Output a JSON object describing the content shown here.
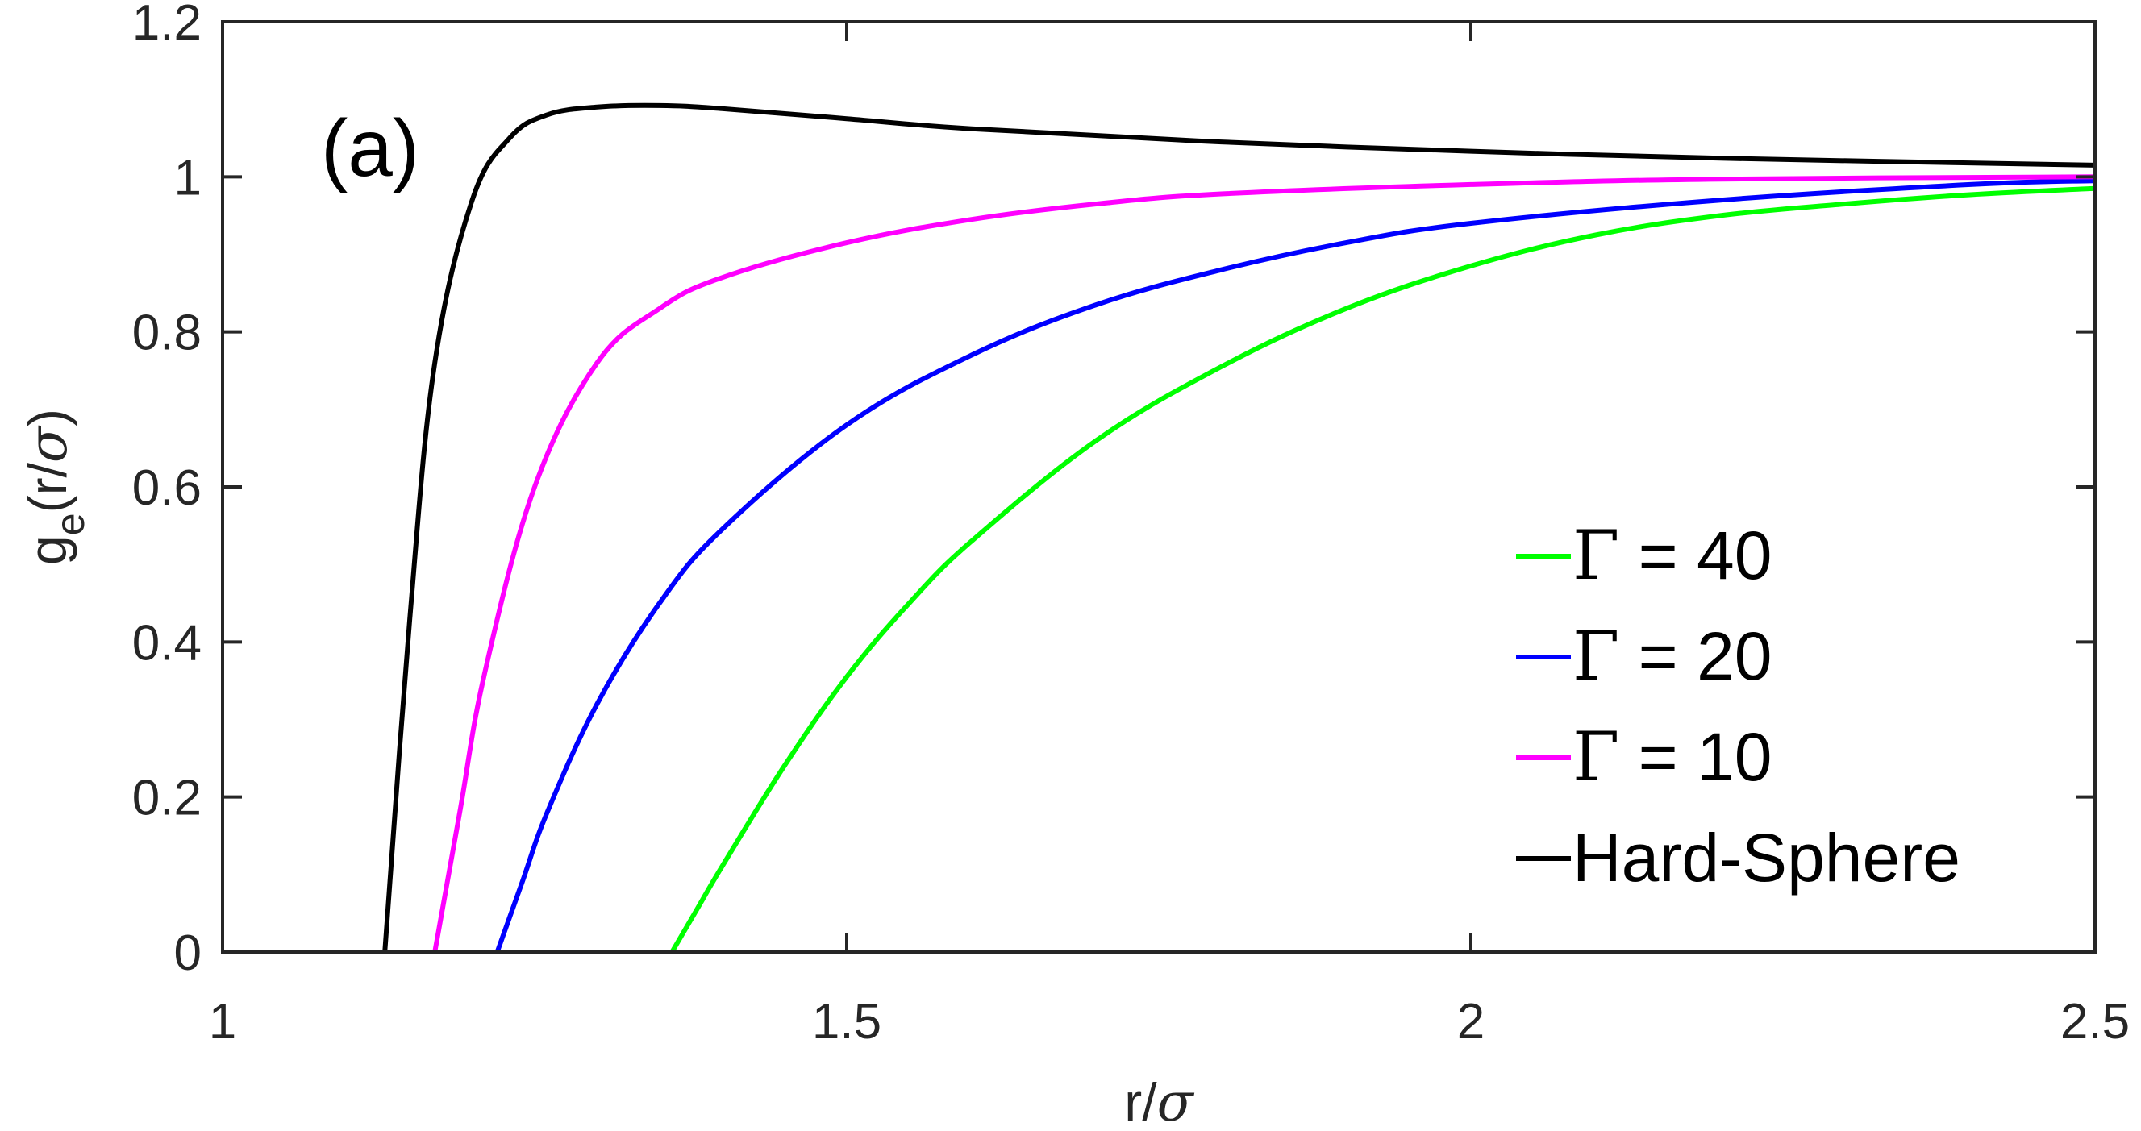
{
  "chart_data": {
    "type": "line",
    "panel_label": "(a)",
    "xlabel": {
      "main": "r/",
      "symbol": "σ"
    },
    "ylabel": {
      "main": "g",
      "subscript": "e",
      "rest": "(r/",
      "symbol": "σ",
      "close": ")"
    },
    "xlim": [
      1,
      2.5
    ],
    "ylim": [
      0,
      1.2
    ],
    "xticks": [
      1,
      1.5,
      2,
      2.5
    ],
    "xtick_labels": [
      "1",
      "1.5",
      "2",
      "2.5"
    ],
    "yticks": [
      0,
      0.2,
      0.4,
      0.6,
      0.8,
      1,
      1.2
    ],
    "ytick_labels": [
      "0",
      "0.2",
      "0.4",
      "0.6",
      "0.8",
      "1",
      "1.2"
    ],
    "grid": false,
    "legend_position": "bottom-right",
    "series": [
      {
        "name": "Γ = 40",
        "legend_symbol": "Γ",
        "legend_value": " = 40",
        "color": "#00ff00",
        "x": [
          1.0,
          1.36,
          1.38,
          1.4,
          1.45,
          1.5,
          1.55,
          1.6,
          1.7,
          1.8,
          1.9,
          2.0,
          2.1,
          2.2,
          2.3,
          2.4,
          2.5
        ],
        "y": [
          0,
          0,
          0.055,
          0.11,
          0.24,
          0.355,
          0.45,
          0.53,
          0.66,
          0.755,
          0.83,
          0.885,
          0.925,
          0.95,
          0.965,
          0.977,
          0.985
        ]
      },
      {
        "name": "Γ = 20",
        "legend_symbol": "Γ",
        "legend_value": " = 20",
        "color": "#0000ff",
        "x": [
          1.0,
          1.22,
          1.24,
          1.26,
          1.3,
          1.35,
          1.4,
          1.5,
          1.6,
          1.7,
          1.8,
          1.9,
          2.0,
          2.2,
          2.4,
          2.5
        ],
        "y": [
          0,
          0,
          0.09,
          0.18,
          0.32,
          0.45,
          0.545,
          0.68,
          0.77,
          0.835,
          0.88,
          0.915,
          0.94,
          0.97,
          0.99,
          0.995
        ]
      },
      {
        "name": "Γ = 10",
        "legend_symbol": "Γ",
        "legend_value": " = 10",
        "color": "#ff00ff",
        "x": [
          1.0,
          1.17,
          1.19,
          1.21,
          1.25,
          1.3,
          1.35,
          1.4,
          1.5,
          1.6,
          1.7,
          1.8,
          2.0,
          2.2,
          2.5
        ],
        "y": [
          0,
          0,
          0.18,
          0.36,
          0.6,
          0.76,
          0.83,
          0.87,
          0.915,
          0.945,
          0.965,
          0.978,
          0.99,
          0.997,
          1.0
        ]
      },
      {
        "name": "Hard-Sphere",
        "legend_symbol": "",
        "legend_value": "Hard-Sphere",
        "color": "#000000",
        "x": [
          1.0,
          1.13,
          1.15,
          1.17,
          1.2,
          1.23,
          1.26,
          1.3,
          1.35,
          1.4,
          1.5,
          1.6,
          1.8,
          2.0,
          2.2,
          2.5
        ],
        "y": [
          0,
          0,
          0.43,
          0.76,
          0.97,
          1.05,
          1.08,
          1.09,
          1.092,
          1.088,
          1.075,
          1.062,
          1.045,
          1.033,
          1.024,
          1.015
        ]
      }
    ]
  }
}
